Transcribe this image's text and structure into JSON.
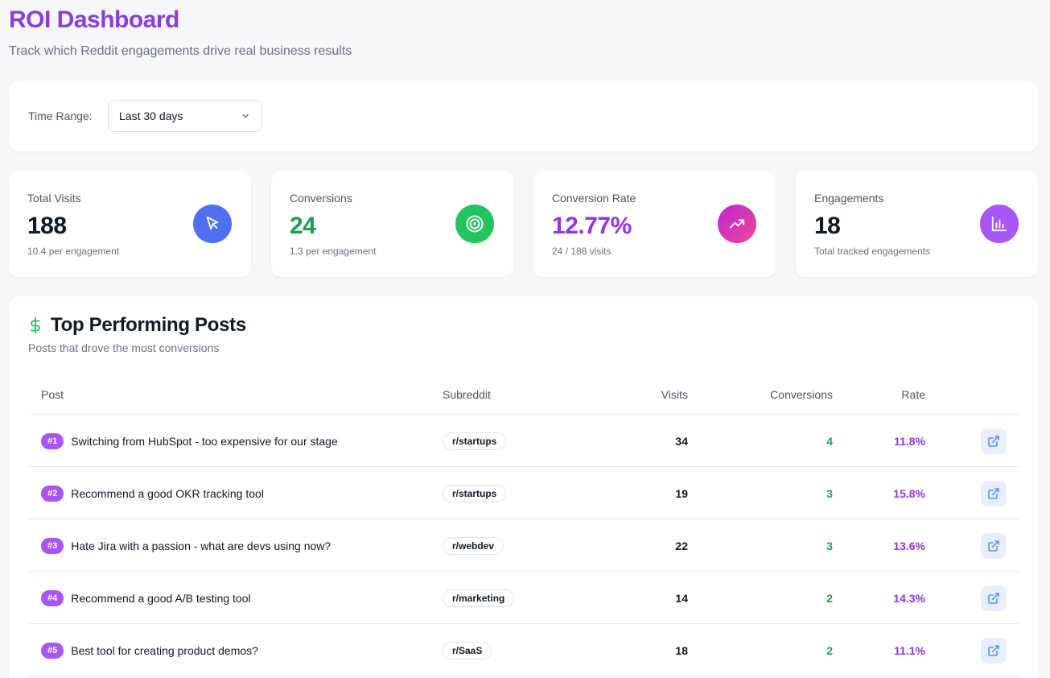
{
  "header": {
    "title": "ROI Dashboard",
    "subtitle": "Track which Reddit engagements drive real business results"
  },
  "filters": {
    "time_range_label": "Time Range:",
    "time_range_value": "Last 30 days"
  },
  "stats": [
    {
      "label": "Total Visits",
      "value": "188",
      "sub": "10.4 per engagement",
      "icon": "cursor-icon",
      "color": "#4f6ef0"
    },
    {
      "label": "Conversions",
      "value": "24",
      "sub": "1.3 per engagement",
      "icon": "target-icon",
      "color": "#22c55e"
    },
    {
      "label": "Conversion Rate",
      "value": "12.77%",
      "sub": "24 / 188 visits",
      "icon": "trending-up-icon",
      "color": "#d946ef"
    },
    {
      "label": "Engagements",
      "value": "18",
      "sub": "Total tracked engagements",
      "icon": "bar-chart-icon",
      "color": "#a855f7"
    }
  ],
  "top_posts": {
    "title": "Top Performing Posts",
    "subtitle": "Posts that drove the most conversions",
    "columns": {
      "post": "Post",
      "subreddit": "Subreddit",
      "visits": "Visits",
      "conversions": "Conversions",
      "rate": "Rate"
    },
    "rows": [
      {
        "rank": "#1",
        "title": "Switching from HubSpot - too expensive for our stage",
        "subreddit": "r/startups",
        "visits": "34",
        "conversions": "4",
        "rate": "11.8%"
      },
      {
        "rank": "#2",
        "title": "Recommend a good OKR tracking tool",
        "subreddit": "r/startups",
        "visits": "19",
        "conversions": "3",
        "rate": "15.8%"
      },
      {
        "rank": "#3",
        "title": "Hate Jira with a passion - what are devs using now?",
        "subreddit": "r/webdev",
        "visits": "22",
        "conversions": "3",
        "rate": "13.6%"
      },
      {
        "rank": "#4",
        "title": "Recommend a good A/B testing tool",
        "subreddit": "r/marketing",
        "visits": "14",
        "conversions": "2",
        "rate": "14.3%"
      },
      {
        "rank": "#5",
        "title": "Best tool for creating product demos?",
        "subreddit": "r/SaaS",
        "visits": "18",
        "conversions": "2",
        "rate": "11.1%"
      }
    ]
  },
  "colors": {
    "title_purple": "#8b3ce0",
    "conversion_green": "#16a34a",
    "rate_purple": "#9333ea",
    "rank_badge": "#a855f7",
    "dollar_green": "#22c55e"
  }
}
